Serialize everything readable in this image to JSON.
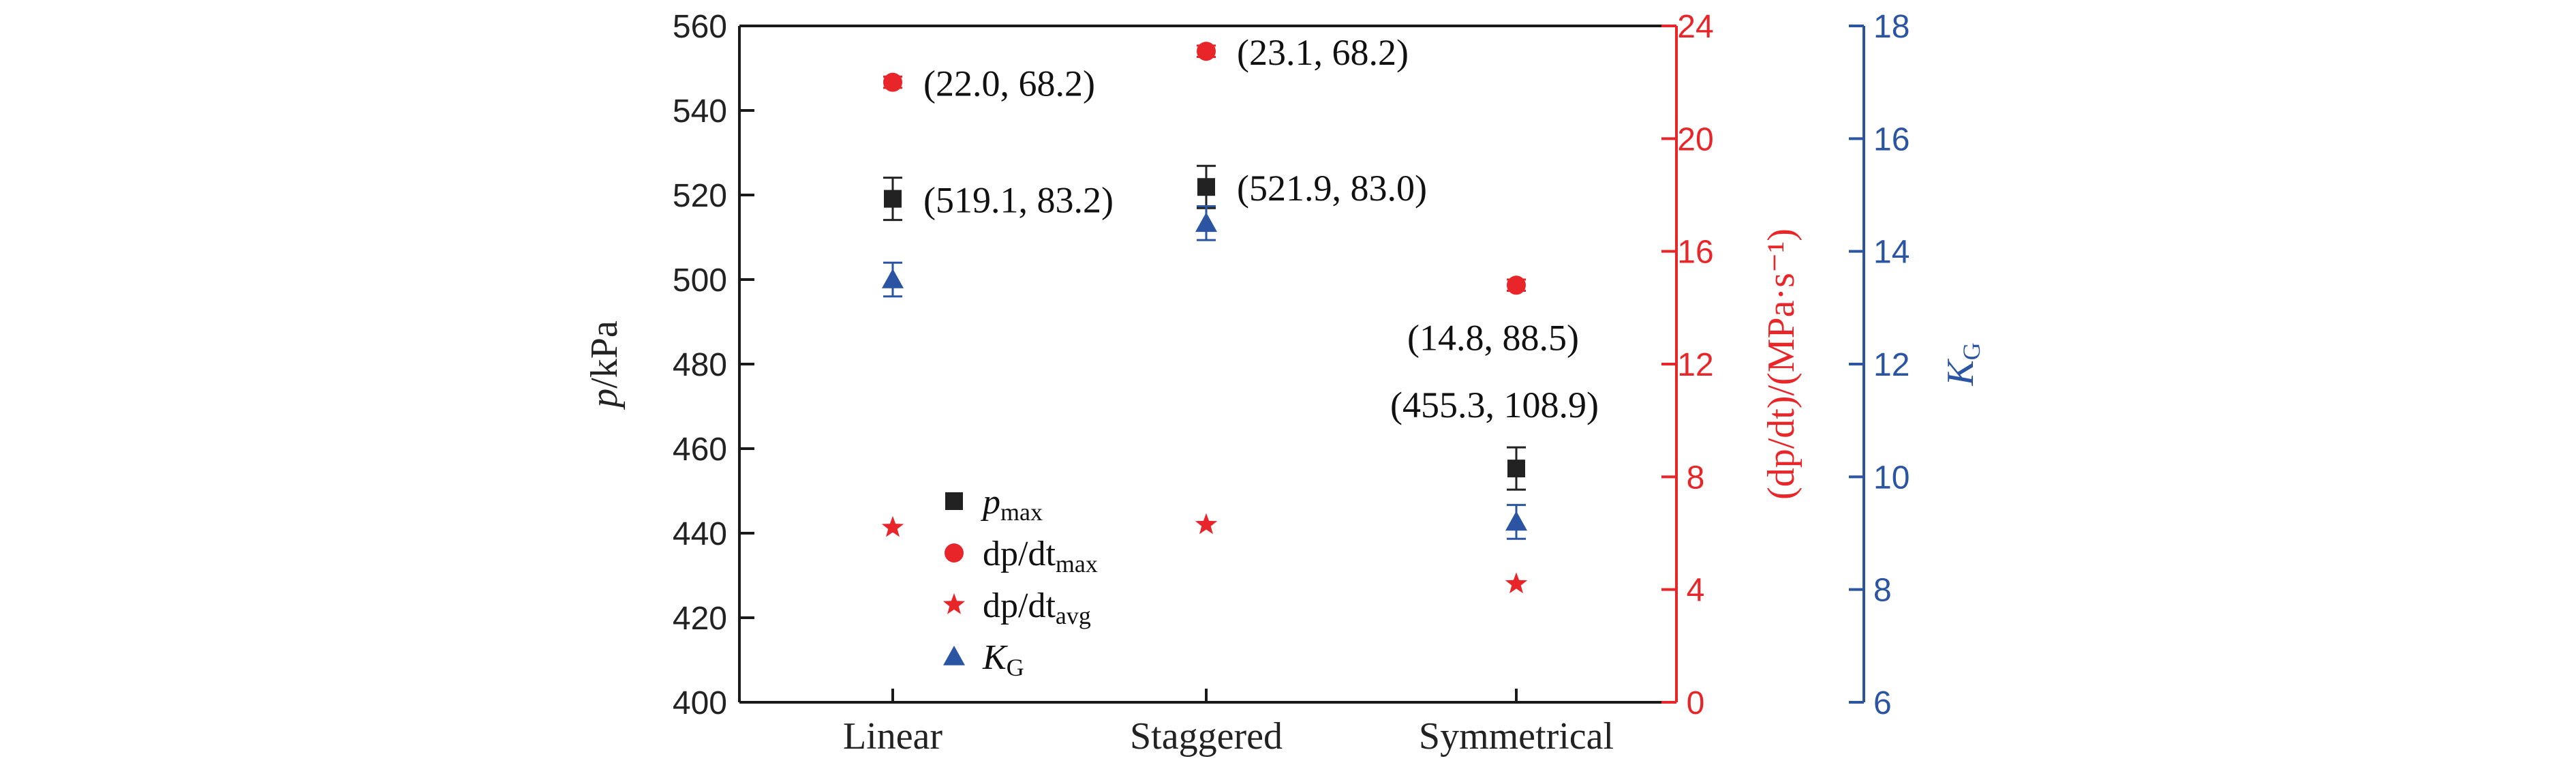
{
  "colors": {
    "black_axis": "#1a1a1a",
    "red_axis": "#e8262a",
    "blue_axis": "#2b55a2",
    "p_max": "#222222",
    "dpdt_max": "#e8262a",
    "dpdt_avg": "#e8262a",
    "K_G": "#2b55a2"
  },
  "chart_data": {
    "type": "scatter",
    "categories": [
      "Linear",
      "Staggered",
      "Symmetrical"
    ],
    "axes": {
      "left": {
        "label_var": "p",
        "label_unit": "/kPa",
        "range": [
          400,
          560
        ],
        "ticks": [
          400,
          420,
          440,
          460,
          480,
          500,
          520,
          540,
          560
        ]
      },
      "right_red": {
        "label": "(dp/dt)/(MPa·s⁻¹)",
        "range": [
          0,
          24
        ],
        "ticks": [
          0,
          4,
          8,
          12,
          16,
          20,
          24
        ]
      },
      "right_blue": {
        "label_var": "K",
        "label_sub": "G",
        "range": [
          6,
          18
        ],
        "ticks": [
          6,
          8,
          10,
          12,
          14,
          16,
          18
        ]
      }
    },
    "series": [
      {
        "name": "p_max",
        "axis": "left",
        "marker": "square",
        "values": [
          519.1,
          521.9,
          455.3
        ],
        "errors": [
          5,
          5,
          5
        ]
      },
      {
        "name": "dp/dt_max",
        "axis": "right_red",
        "marker": "circle",
        "values": [
          22.0,
          23.1,
          14.8
        ],
        "errors": [
          0.2,
          0.2,
          0.2
        ]
      },
      {
        "name": "dp/dt_avg",
        "axis": "right_red",
        "marker": "star",
        "values": [
          6.2,
          6.3,
          4.2
        ],
        "errors": [
          0,
          0,
          0
        ]
      },
      {
        "name": "K_G",
        "axis": "right_blue",
        "marker": "triangle",
        "values": [
          13.5,
          14.5,
          9.2
        ],
        "errors": [
          0.3,
          0.3,
          0.3
        ]
      }
    ],
    "annotations": [
      {
        "text": "(22.0, 68.2)",
        "series": "dp/dt_max",
        "category": "Linear"
      },
      {
        "text": "(23.1, 68.2)",
        "series": "dp/dt_max",
        "category": "Staggered"
      },
      {
        "text": "(14.8, 88.5)",
        "series": "dp/dt_max",
        "category": "Symmetrical"
      },
      {
        "text": "(519.1, 83.2)",
        "series": "p_max",
        "category": "Linear"
      },
      {
        "text": "(521.9, 83.0)",
        "series": "p_max",
        "category": "Staggered"
      },
      {
        "text": "(455.3, 108.9)",
        "series": "p_max",
        "category": "Symmetrical"
      }
    ],
    "legend": {
      "placement": "lower-left",
      "entries": [
        {
          "series": "p_max",
          "main": "p",
          "sub": "max"
        },
        {
          "series": "dp/dt_max",
          "main": "dp/dt",
          "sub": "max"
        },
        {
          "series": "dp/dt_avg",
          "main": "dp/dt",
          "sub": "avg"
        },
        {
          "series": "K_G",
          "main": "K",
          "sub": "G"
        }
      ]
    },
    "grid": false
  }
}
